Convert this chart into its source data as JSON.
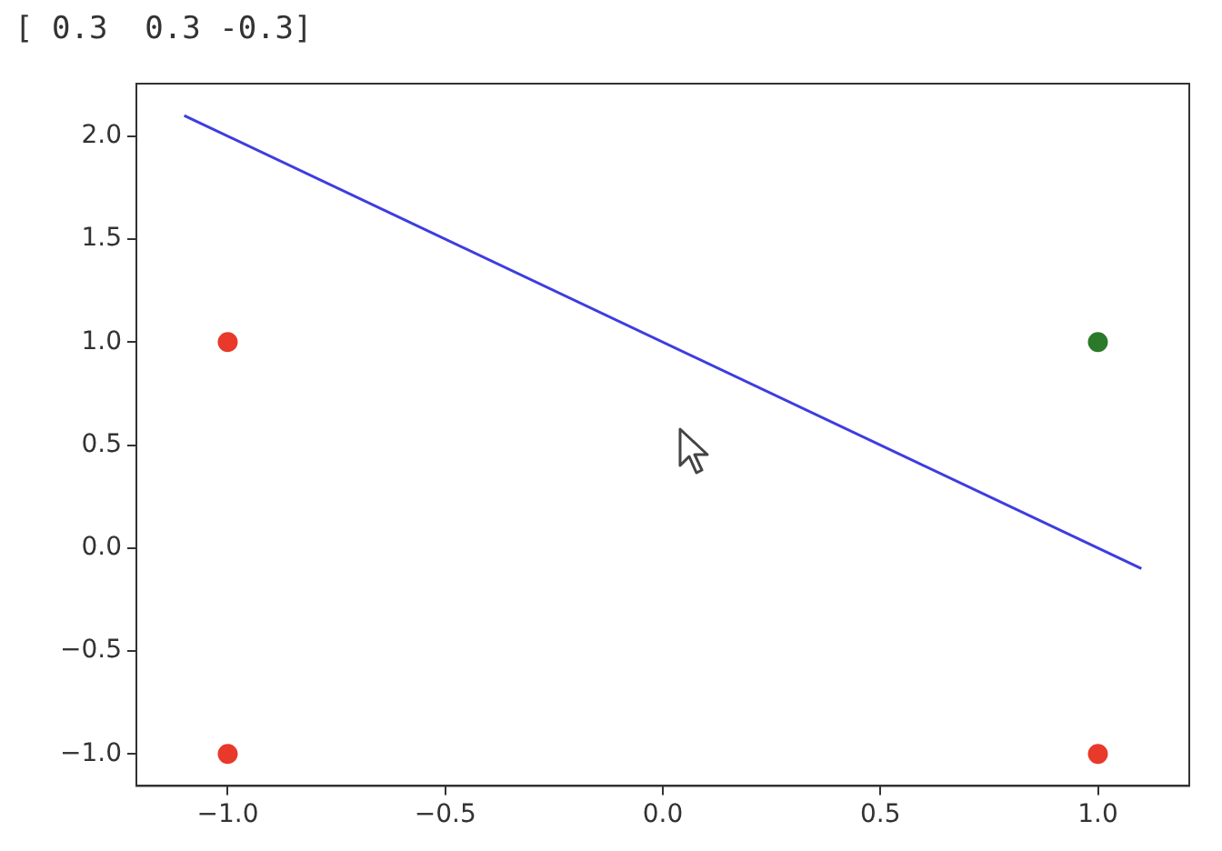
{
  "chart_data": {
    "type": "scatter",
    "annotations": [
      "[ 0.3  0.3 -0.3]"
    ],
    "xlim": [
      -1.21,
      1.21
    ],
    "xticks": [
      {
        "value": -1,
        "label": "−1.0"
      },
      {
        "value": -0.5,
        "label": "−0.5"
      },
      {
        "value": 0,
        "label": "0.0"
      },
      {
        "value": 0.5,
        "label": "0.5"
      },
      {
        "value": 1,
        "label": "1.0"
      }
    ],
    "ylim": [
      -1.155,
      2.255
    ],
    "yticks": [
      {
        "value": -1,
        "label": "−1.0"
      },
      {
        "value": -0.5,
        "label": "−0.5"
      },
      {
        "value": 0,
        "label": "0.0"
      },
      {
        "value": 0.5,
        "label": "0.5"
      },
      {
        "value": 1,
        "label": "1.0"
      },
      {
        "value": 1.5,
        "label": "1.5"
      },
      {
        "value": 2,
        "label": "2.0"
      }
    ],
    "grid": false,
    "legend": false,
    "series": [
      {
        "type": "line",
        "color": "#3d3de0",
        "x": [
          -1.1,
          1.1
        ],
        "values": [
          2.1,
          -0.1
        ]
      },
      {
        "type": "scatter",
        "marker": "circle",
        "color": "#e8392a",
        "x": [
          -1,
          -1,
          1
        ],
        "values": [
          1,
          -1,
          -1
        ]
      },
      {
        "type": "scatter",
        "marker": "circle",
        "color": "#2a7a2a",
        "x": [
          1
        ],
        "values": [
          1
        ]
      }
    ]
  }
}
